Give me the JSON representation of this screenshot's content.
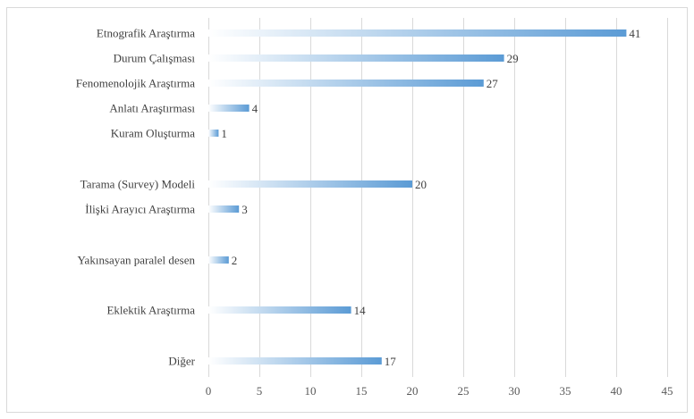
{
  "chart_data": {
    "type": "bar",
    "orientation": "horizontal",
    "categories": [
      "Etnografik Araştırma",
      "Durum Çalışması",
      "Fenomenolojik Araştırma",
      "Anlatı Araştırması",
      "Kuram Oluşturma",
      "Tarama (Survey) Modeli",
      "İlişki Arayıcı Araştırma",
      "Yakınsayan paralel desen",
      "Eklektik Araştırma",
      "Diğer"
    ],
    "values": [
      41,
      29,
      27,
      4,
      1,
      20,
      3,
      2,
      14,
      17
    ],
    "xlim": [
      0,
      45
    ],
    "xticks": [
      0,
      5,
      10,
      15,
      20,
      25,
      30,
      35,
      40,
      45
    ],
    "grid": "vertical",
    "legend": "none",
    "data_labels": true,
    "title": "",
    "xlabel": "",
    "ylabel": "",
    "colors": {
      "bar_start": "#ffffff",
      "bar_end": "#5b9bd5",
      "grid": "#d9d9d9",
      "text": "#404040",
      "border": "#d9d9d9"
    }
  }
}
